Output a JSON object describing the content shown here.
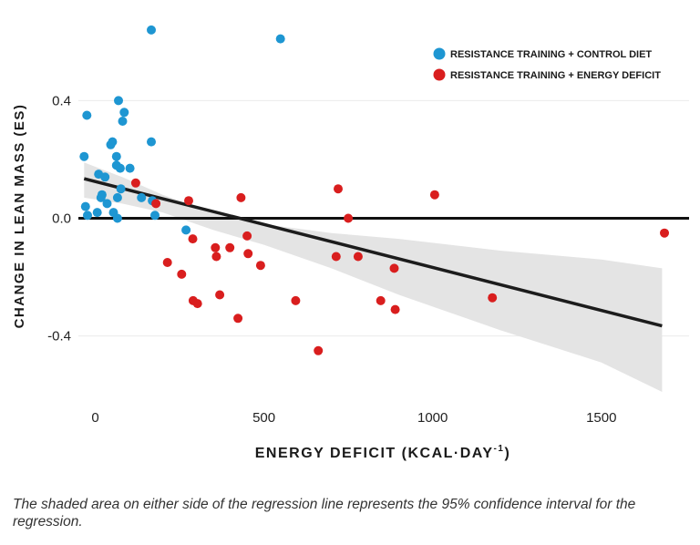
{
  "chart_data": {
    "type": "scatter",
    "xlabel": "ENERGY DEFICIT (KCAL·DAY",
    "xlabel_superscript": "-1",
    "xlabel_close": ")",
    "ylabel": "CHANGE IN LEAN MASS (ES)",
    "xlim": [
      -50,
      1760
    ],
    "ylim": [
      -0.59,
      0.68
    ],
    "x_ticks": [
      0,
      500,
      1000,
      1500
    ],
    "x_tick_labels": [
      "0",
      "500",
      "1000",
      "1500"
    ],
    "y_ticks": [
      0.4,
      0.0,
      -0.4
    ],
    "y_tick_labels": [
      "0.4",
      "0.0",
      "-0.4"
    ],
    "grid": "horizontal",
    "legend_position": "top-right",
    "series": [
      {
        "name": "RESISTANCE TRAINING + CONTROL DIET",
        "color": "#1e96d2",
        "points": [
          [
            -33,
            0.21
          ],
          [
            -29,
            0.04
          ],
          [
            -25,
            0.35
          ],
          [
            -23,
            0.01
          ],
          [
            6,
            0.02
          ],
          [
            10,
            0.15
          ],
          [
            17,
            0.07
          ],
          [
            20,
            0.08
          ],
          [
            29,
            0.14
          ],
          [
            35,
            0.05
          ],
          [
            46,
            0.25
          ],
          [
            51,
            0.26
          ],
          [
            54,
            0.02
          ],
          [
            63,
            0.21
          ],
          [
            63,
            0.18
          ],
          [
            66,
            0.07
          ],
          [
            66,
            0.0
          ],
          [
            69,
            0.4
          ],
          [
            74,
            0.17
          ],
          [
            76,
            0.1
          ],
          [
            81,
            0.33
          ],
          [
            86,
            0.36
          ],
          [
            103,
            0.17
          ],
          [
            137,
            0.07
          ],
          [
            166,
            0.26
          ],
          [
            166,
            0.64
          ],
          [
            169,
            0.06
          ],
          [
            177,
            0.01
          ],
          [
            269,
            -0.04
          ],
          [
            549,
            0.61
          ]
        ]
      },
      {
        "name": "RESISTANCE TRAINING + ENERGY DEFICIT",
        "color": "#d91e1e",
        "points": [
          [
            120,
            0.12
          ],
          [
            180,
            0.05
          ],
          [
            214,
            -0.15
          ],
          [
            256,
            -0.19
          ],
          [
            277,
            0.06
          ],
          [
            289,
            -0.07
          ],
          [
            290,
            -0.28
          ],
          [
            303,
            -0.29
          ],
          [
            356,
            -0.1
          ],
          [
            359,
            -0.13
          ],
          [
            369,
            -0.26
          ],
          [
            399,
            -0.1
          ],
          [
            423,
            -0.34
          ],
          [
            432,
            0.07
          ],
          [
            450,
            -0.06
          ],
          [
            453,
            -0.12
          ],
          [
            490,
            -0.16
          ],
          [
            594,
            -0.28
          ],
          [
            661,
            -0.45
          ],
          [
            714,
            -0.13
          ],
          [
            720,
            0.1
          ],
          [
            750,
            0.0
          ],
          [
            779,
            -0.13
          ],
          [
            846,
            -0.28
          ],
          [
            886,
            -0.17
          ],
          [
            889,
            -0.31
          ],
          [
            1006,
            0.08
          ],
          [
            1177,
            -0.27
          ],
          [
            1687,
            -0.05
          ]
        ]
      }
    ],
    "regression": {
      "x_range": [
        -33,
        1680
      ],
      "intercept": 0.125,
      "slope": -0.000292,
      "ci_upper": [
        [
          -33,
          0.19
        ],
        [
          80,
          0.14
        ],
        [
          200,
          0.08
        ],
        [
          350,
          0.02
        ],
        [
          500,
          -0.02
        ],
        [
          700,
          -0.05
        ],
        [
          900,
          -0.07
        ],
        [
          1200,
          -0.11
        ],
        [
          1500,
          -0.14
        ],
        [
          1680,
          -0.17
        ]
      ],
      "ci_lower": [
        [
          -33,
          0.07
        ],
        [
          80,
          0.05
        ],
        [
          200,
          0.02
        ],
        [
          350,
          -0.04
        ],
        [
          500,
          -0.09
        ],
        [
          700,
          -0.17
        ],
        [
          900,
          -0.26
        ],
        [
          1200,
          -0.38
        ],
        [
          1500,
          -0.49
        ],
        [
          1680,
          -0.59
        ]
      ]
    },
    "colors": {
      "ci_band": "#e4e4e4",
      "regression_line": "#1c1c1c",
      "zero_line": "#111111",
      "grid": "#ececec"
    }
  },
  "caption": "The shaded area on either side of the regression line represents the 95% confidence interval for the regression."
}
